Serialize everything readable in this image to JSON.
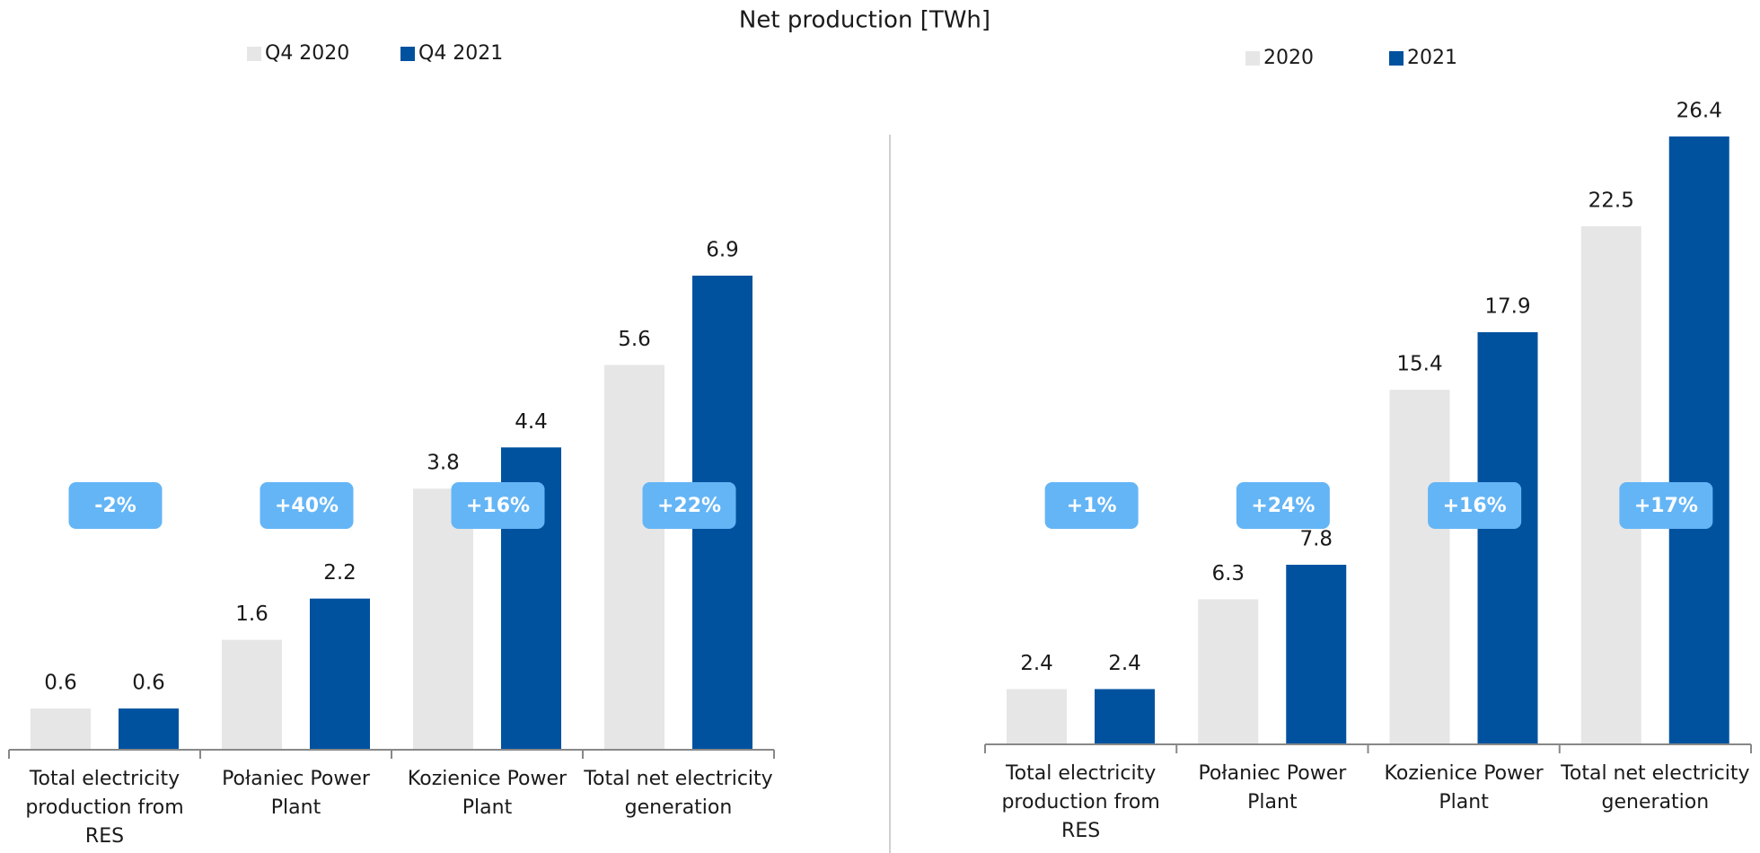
{
  "title": "Net production [TWh]",
  "chart_data": [
    {
      "type": "bar",
      "categories": [
        "Total electricity production from RES",
        "Połaniec Power Plant",
        "Kozienice Power Plant",
        "Total net electricity generation"
      ],
      "series": [
        {
          "name": "Q4 2020",
          "color": "#e6e6e6",
          "values": [
            0.6,
            1.6,
            3.8,
            5.6
          ]
        },
        {
          "name": "Q4 2021",
          "color": "#00529f",
          "values": [
            0.6,
            2.2,
            4.4,
            6.9
          ]
        }
      ],
      "annotations": [
        "-2%",
        "+40%",
        "+16%",
        "+22%"
      ]
    },
    {
      "type": "bar",
      "categories": [
        "Total electricity production from RES",
        "Połaniec Power Plant",
        "Kozienice Power Plant",
        "Total net electricity generation"
      ],
      "series": [
        {
          "name": "2020",
          "color": "#e6e6e6",
          "values": [
            2.4,
            6.3,
            15.4,
            22.5
          ]
        },
        {
          "name": "2021",
          "color": "#00529f",
          "values": [
            2.4,
            7.8,
            17.9,
            26.4
          ]
        }
      ],
      "annotations": [
        "+1%",
        "+24%",
        "+16%",
        "+17%"
      ]
    }
  ]
}
